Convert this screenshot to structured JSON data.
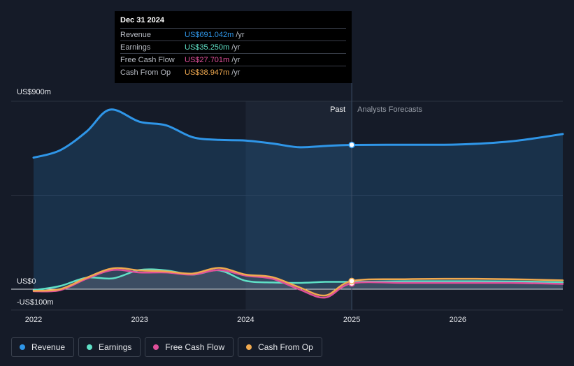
{
  "tooltip": {
    "date": "Dec 31 2024",
    "rows": [
      {
        "label": "Revenue",
        "value": "US$691.042m",
        "unit": "/yr",
        "color": "#2f96e8"
      },
      {
        "label": "Earnings",
        "value": "US$35.250m",
        "unit": "/yr",
        "color": "#5fe0c6"
      },
      {
        "label": "Free Cash Flow",
        "value": "US$27.701m",
        "unit": "/yr",
        "color": "#e0509b"
      },
      {
        "label": "Cash From Op",
        "value": "US$38.947m",
        "unit": "/yr",
        "color": "#f0a94f"
      }
    ]
  },
  "legend": [
    {
      "label": "Revenue",
      "color": "#2f96e8"
    },
    {
      "label": "Earnings",
      "color": "#5fe0c6"
    },
    {
      "label": "Free Cash Flow",
      "color": "#e0509b"
    },
    {
      "label": "Cash From Op",
      "color": "#f0a94f"
    }
  ],
  "chart_data": {
    "type": "line",
    "title": "",
    "xlabel": "",
    "ylabel": "",
    "ylim": [
      -100,
      900
    ],
    "xlim": [
      2022.0,
      2026.99
    ],
    "y_ticks": [
      {
        "value": 900,
        "label": "US$900m"
      },
      {
        "value": 0,
        "label": "US$0"
      },
      {
        "value": -100,
        "label": "-US$100m"
      }
    ],
    "x_ticks": [
      {
        "value": 2022,
        "label": "2022"
      },
      {
        "value": 2023,
        "label": "2023"
      },
      {
        "value": 2024,
        "label": "2024"
      },
      {
        "value": 2025,
        "label": "2025"
      },
      {
        "value": 2026,
        "label": "2026"
      }
    ],
    "past_label": "Past",
    "forecast_label": "Analysts Forecasts",
    "divider_x": 2025.0,
    "highlight_start_x": 2024.0,
    "grid": true,
    "legend_position": "bottom-left",
    "series": [
      {
        "name": "Revenue",
        "color": "#2f96e8",
        "area": true,
        "x": [
          2022.0,
          2022.25,
          2022.5,
          2022.72,
          2023.0,
          2023.25,
          2023.5,
          2023.75,
          2024.0,
          2024.25,
          2024.5,
          2024.75,
          2025.0,
          2025.5,
          2026.0,
          2026.5,
          2026.99
        ],
        "y": [
          630,
          665,
          755,
          860,
          802,
          785,
          728,
          715,
          712,
          698,
          680,
          686,
          691,
          692,
          693,
          708,
          743
        ]
      },
      {
        "name": "Earnings",
        "color": "#5fe0c6",
        "x": [
          2022.0,
          2022.25,
          2022.5,
          2022.75,
          2023.0,
          2023.25,
          2023.5,
          2023.75,
          2024.0,
          2024.25,
          2024.5,
          2024.75,
          2025.0,
          2025.5,
          2026.0,
          2026.5,
          2026.99
        ],
        "y": [
          -5,
          15,
          55,
          52,
          92,
          90,
          70,
          90,
          40,
          32,
          30,
          35,
          35,
          38,
          38,
          37,
          33
        ]
      },
      {
        "name": "Free Cash Flow",
        "color": "#e0509b",
        "x": [
          2022.0,
          2022.25,
          2022.5,
          2022.75,
          2023.0,
          2023.25,
          2023.5,
          2023.75,
          2024.0,
          2024.25,
          2024.5,
          2024.75,
          2025.0,
          2025.5,
          2026.0,
          2026.5,
          2026.99
        ],
        "y": [
          -10,
          -5,
          50,
          92,
          80,
          80,
          70,
          92,
          65,
          50,
          0,
          -40,
          27.7,
          30,
          30,
          30,
          25
        ]
      },
      {
        "name": "Cash From Op",
        "color": "#f0a94f",
        "x": [
          2022.0,
          2022.25,
          2022.5,
          2022.75,
          2023.0,
          2023.25,
          2023.5,
          2023.75,
          2024.0,
          2024.25,
          2024.5,
          2024.75,
          2025.0,
          2025.5,
          2026.0,
          2026.5,
          2026.99
        ],
        "y": [
          -8,
          0,
          55,
          100,
          90,
          85,
          75,
          102,
          70,
          58,
          10,
          -30,
          38.9,
          48,
          50,
          48,
          42
        ]
      }
    ]
  }
}
